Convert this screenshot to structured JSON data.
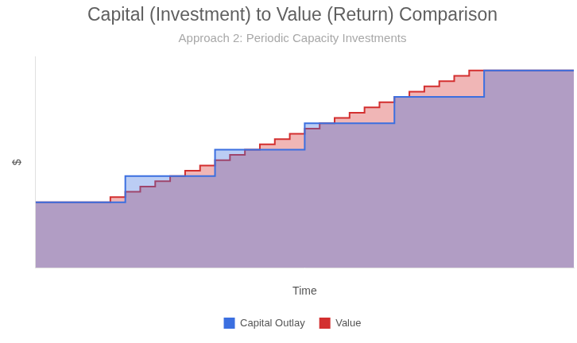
{
  "chart_data": {
    "type": "area",
    "title": "Capital (Investment) to Value (Return) Comparison",
    "subtitle": "Approach 2: Periodic Capacity Investments",
    "x_label": "Time",
    "y_label": "$",
    "x": [
      0,
      1,
      2,
      3,
      4,
      5,
      6,
      7,
      8,
      9,
      10,
      11,
      12,
      13,
      14,
      15,
      16,
      17,
      18,
      19,
      20,
      21,
      22,
      23,
      24,
      25,
      26,
      27,
      28,
      29,
      30,
      31,
      32,
      33,
      34,
      35,
      36
    ],
    "xlim": [
      0,
      36
    ],
    "ylim": [
      0,
      100
    ],
    "grid": false,
    "tick_labels": false,
    "legend": "bottom",
    "series": [
      {
        "name": "Capital Outlay",
        "color": "#3b6fe0",
        "line_style": "steps",
        "values": [
          31,
          31,
          31,
          31,
          31,
          31,
          43.5,
          43.5,
          43.5,
          43.5,
          43.5,
          43.5,
          56,
          56,
          56,
          56,
          56,
          56,
          68.5,
          68.5,
          68.5,
          68.5,
          68.5,
          68.5,
          81,
          81,
          81,
          81,
          81,
          81,
          93.5,
          93.5,
          93.5,
          93.5,
          93.5,
          93.5,
          93.5
        ]
      },
      {
        "name": "Value",
        "color": "#d32f2f",
        "line_style": "steps",
        "values": [
          31,
          31,
          31,
          31,
          31,
          33.5,
          36,
          38.5,
          41,
          43.5,
          46,
          48.5,
          51,
          53.5,
          56,
          58.5,
          61,
          63.5,
          66,
          68.5,
          71,
          73.5,
          76,
          78.5,
          81,
          83.5,
          86,
          88.5,
          91,
          93.5,
          93.5,
          93.5,
          93.5,
          93.5,
          93.5,
          93.5,
          93.5
        ]
      }
    ]
  }
}
